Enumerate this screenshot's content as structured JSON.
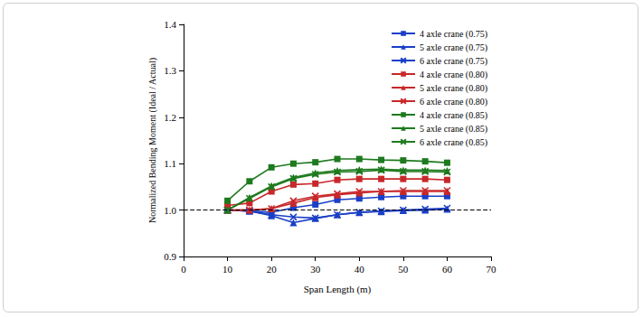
{
  "chart_data": {
    "type": "line",
    "x_label": "Span Length (m)",
    "y_label": "Normalized Bending Moment (Ideal / Actual)",
    "x": [
      10,
      15,
      20,
      25,
      30,
      35,
      40,
      45,
      50,
      55,
      60
    ],
    "series": [
      {
        "name": "4 axle crane (0.75)",
        "color": "#1a3fc8",
        "marker": "square",
        "values": [
          1.0,
          0.998,
          0.995,
          1.005,
          1.012,
          1.022,
          1.025,
          1.028,
          1.03,
          1.03,
          1.03
        ]
      },
      {
        "name": "5 axle crane (0.75)",
        "color": "#1a3fc8",
        "marker": "triangle",
        "values": [
          1.0,
          0.998,
          0.988,
          0.973,
          0.982,
          0.99,
          0.995,
          0.997,
          0.999,
          1.0,
          1.002
        ]
      },
      {
        "name": "6 axle crane (0.75)",
        "color": "#1a3fc8",
        "marker": "x",
        "values": [
          1.0,
          0.998,
          0.99,
          0.985,
          0.983,
          0.99,
          0.995,
          0.998,
          1.0,
          1.002,
          1.004
        ]
      },
      {
        "name": "4 axle crane (0.80)",
        "color": "#c8282a",
        "marker": "square",
        "values": [
          1.01,
          1.015,
          1.04,
          1.055,
          1.057,
          1.065,
          1.067,
          1.067,
          1.067,
          1.067,
          1.065
        ]
      },
      {
        "name": "5 axle crane (0.80)",
        "color": "#c8282a",
        "marker": "triangle",
        "values": [
          1.0,
          1.0,
          1.003,
          1.015,
          1.027,
          1.033,
          1.037,
          1.04,
          1.04,
          1.04,
          1.04
        ]
      },
      {
        "name": "6 axle crane (0.80)",
        "color": "#c8282a",
        "marker": "x",
        "values": [
          1.0,
          1.0,
          1.003,
          1.02,
          1.03,
          1.035,
          1.04,
          1.04,
          1.042,
          1.042,
          1.042
        ]
      },
      {
        "name": "4 axle crane (0.85)",
        "color": "#1e7a1e",
        "marker": "square",
        "values": [
          1.02,
          1.062,
          1.092,
          1.1,
          1.103,
          1.11,
          1.11,
          1.108,
          1.107,
          1.105,
          1.102
        ]
      },
      {
        "name": "5 axle crane (0.85)",
        "color": "#1e7a1e",
        "marker": "triangle",
        "values": [
          1.0,
          1.027,
          1.052,
          1.07,
          1.08,
          1.085,
          1.087,
          1.088,
          1.086,
          1.086,
          1.085
        ]
      },
      {
        "name": "6 axle crane (0.85)",
        "color": "#1e7a1e",
        "marker": "x",
        "values": [
          1.0,
          1.025,
          1.05,
          1.068,
          1.077,
          1.082,
          1.083,
          1.086,
          1.083,
          1.083,
          1.082
        ]
      }
    ],
    "reference_line": 1,
    "xlim": [
      0,
      70
    ],
    "xticks": [
      0,
      10,
      20,
      30,
      40,
      50,
      60,
      70
    ],
    "ylim": [
      0.9,
      1.4
    ],
    "yticks": [
      0.9,
      {
        "value": 1,
        "label": "1.0"
      },
      1.1,
      1.2,
      1.3,
      1.4
    ],
    "legend": "top-right",
    "grid": false
  }
}
